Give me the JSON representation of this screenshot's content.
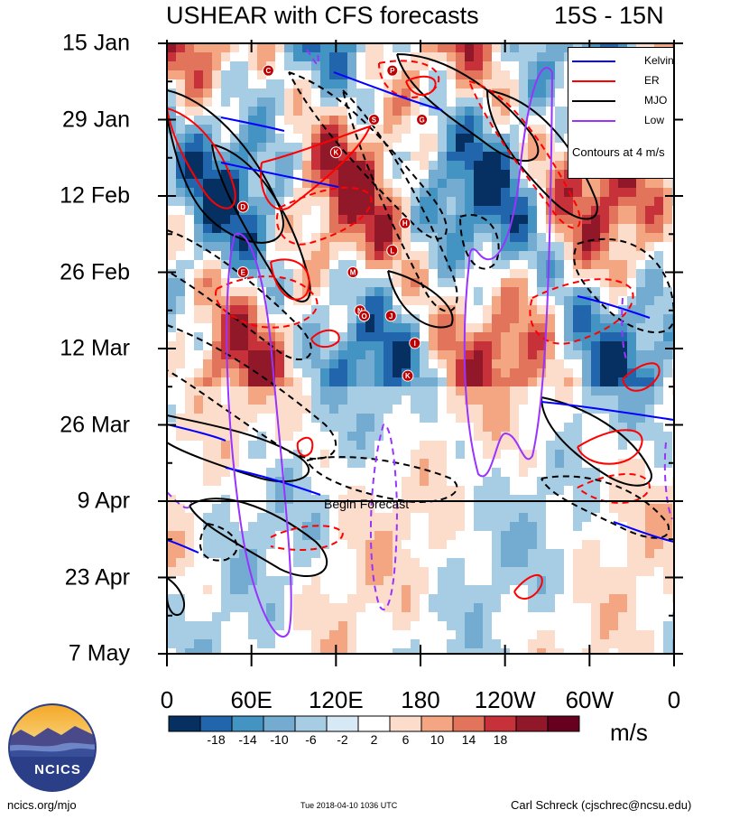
{
  "title": {
    "left": "USHEAR with CFS forecasts",
    "right": "15S - 15N"
  },
  "chart_data": {
    "type": "heatmap",
    "title": "USHEAR with CFS forecasts",
    "subtitle": "15S - 15N",
    "x_tick_labels": [
      "0",
      "60E",
      "120E",
      "180",
      "120W",
      "60W",
      "0"
    ],
    "x_range": [
      0,
      360
    ],
    "y_tick_labels": [
      "15 Jan",
      "29 Jan",
      "12 Feb",
      "26 Feb",
      "12 Mar",
      "26 Mar",
      "9 Apr",
      "23 Apr",
      "7 May"
    ],
    "y_range_days": [
      0,
      112
    ],
    "colorbar": {
      "units": "m/s",
      "levels": [
        "-18",
        "-14",
        "-10",
        "-6",
        "-2",
        "2",
        "6",
        "10",
        "14",
        "18"
      ],
      "colors": [
        "#053061",
        "#2166ac",
        "#4393c3",
        "#74acd1",
        "#a6cde4",
        "#d6e9f4",
        "#ffffff",
        "#fcdccb",
        "#f4a582",
        "#e2745c",
        "#c7323a",
        "#911828",
        "#67001f"
      ]
    },
    "contour_note": "Contours at 4 m/s",
    "legend": [
      {
        "label": "Kelvin",
        "color": "#0000ff"
      },
      {
        "label": "ER",
        "color": "#ff0000"
      },
      {
        "label": "MJO",
        "color": "#000000"
      },
      {
        "label": "Low",
        "color": "#9933ff"
      }
    ],
    "forecast_line": {
      "label": "Begin Forecast",
      "date": "9 Apr"
    },
    "storms": [
      {
        "label": "C",
        "lon": 72,
        "day": 5
      },
      {
        "label": "P",
        "lon": 160,
        "day": 5
      },
      {
        "label": "S",
        "lon": 147,
        "day": 14
      },
      {
        "label": "G",
        "lon": 181,
        "day": 14
      },
      {
        "label": "K",
        "lon": 120,
        "day": 20
      },
      {
        "label": "D",
        "lon": 54,
        "day": 30
      },
      {
        "label": "H",
        "lon": 169,
        "day": 33
      },
      {
        "label": "L",
        "lon": 160,
        "day": 38
      },
      {
        "label": "E",
        "lon": 54,
        "day": 42
      },
      {
        "label": "M",
        "lon": 132,
        "day": 42
      },
      {
        "label": "N",
        "lon": 137,
        "day": 49
      },
      {
        "label": "O",
        "lon": 140,
        "day": 50
      },
      {
        "label": "J",
        "lon": 159,
        "day": 50
      },
      {
        "label": "I",
        "lon": 176,
        "day": 55
      },
      {
        "label": "K",
        "lon": 171,
        "day": 61
      }
    ]
  },
  "footer": {
    "left": "ncics.org/mjo",
    "middle": "Tue 2018-04-10 1036 UTC",
    "right": "Carl Schreck (cjschrec@ncsu.edu)"
  },
  "logo": {
    "text": "NCICS"
  }
}
